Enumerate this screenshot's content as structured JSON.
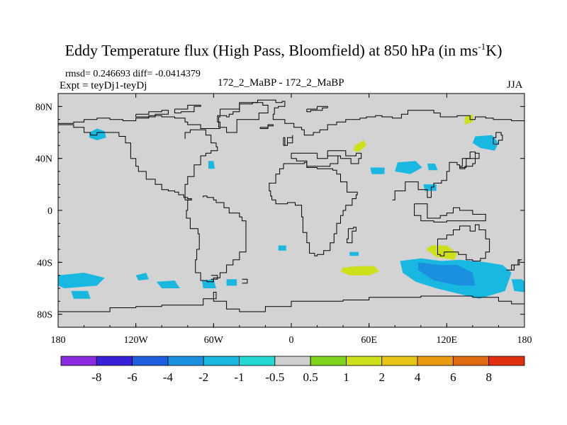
{
  "chart_data": {
    "type": "heatmap",
    "title_text": "Eddy Temperature flux (High Pass, Bloomfield) at 850 hPa (in ms",
    "title_sup": "-1",
    "title_tail": "K)",
    "stats": "rmsd= 0.246693 diff= -0.0414379",
    "experiment": "Expt = teyDj1-teyDj",
    "case_label": "172_2_MaBP - 172_2_MaBP",
    "season": "JJA",
    "xlim": [
      -180,
      180
    ],
    "ylim": [
      -90,
      90
    ],
    "x_ticks": [
      {
        "value": -180,
        "label": "180"
      },
      {
        "value": -120,
        "label": "120W"
      },
      {
        "value": -60,
        "label": "60W"
      },
      {
        "value": 0,
        "label": "0"
      },
      {
        "value": 60,
        "label": "60E"
      },
      {
        "value": 120,
        "label": "120E"
      },
      {
        "value": 180,
        "label": "180"
      }
    ],
    "y_ticks": [
      {
        "value": 80,
        "label": "80N"
      },
      {
        "value": 40,
        "label": "40N"
      },
      {
        "value": 0,
        "label": "0"
      },
      {
        "value": -40,
        "label": "40S"
      },
      {
        "value": -80,
        "label": "80S"
      }
    ],
    "colorbar": {
      "levels": [
        "-8",
        "-6",
        "-4",
        "-2",
        "-1",
        "-0.5",
        "0.5",
        "1",
        "2",
        "4",
        "6",
        "8"
      ],
      "colors": [
        "#8a2be2",
        "#3a1fd8",
        "#1e5fe0",
        "#1c90e0",
        "#19b8e0",
        "#22d8d0",
        "#cfcfcf",
        "#7ed31c",
        "#cde01a",
        "#e8c416",
        "#e89a10",
        "#e06a10",
        "#e03010"
      ]
    },
    "background_color": "#d3d3d3",
    "coastline_color": "#000000",
    "regions": [
      {
        "name": "n-pacific-cyan",
        "level": "-1",
        "lon": [
          -156,
          -150,
          -144,
          -143,
          -150,
          -156
        ],
        "lat": [
          60,
          63,
          61,
          56,
          54,
          56
        ]
      },
      {
        "name": "atlantic-cyan",
        "level": "-1",
        "lon": [
          -64,
          -60,
          -59,
          -64
        ],
        "lat": [
          38,
          38,
          32,
          32
        ]
      },
      {
        "name": "europe-green",
        "level": "1",
        "lon": [
          49,
          56,
          58,
          52,
          48
        ],
        "lat": [
          50,
          54,
          50,
          45,
          46
        ]
      },
      {
        "name": "asia-cyan-1",
        "level": "-1",
        "lon": [
          82,
          96,
          101,
          92,
          80
        ],
        "lat": [
          37,
          38,
          33,
          28,
          30
        ]
      },
      {
        "name": "asia-cyan-2",
        "level": "-1",
        "lon": [
          61,
          72,
          72,
          62
        ],
        "lat": [
          33,
          33,
          28,
          28
        ]
      },
      {
        "name": "asia-cyan-3",
        "level": "-1",
        "lon": [
          105,
          111,
          113,
          106
        ],
        "lat": [
          36,
          36,
          31,
          31
        ]
      },
      {
        "name": "asia-cyan-4",
        "level": "-1",
        "lon": [
          102,
          112,
          112,
          103
        ],
        "lat": [
          20,
          20,
          15,
          15
        ]
      },
      {
        "name": "japan-cyan",
        "level": "-1",
        "lon": [
          142,
          155,
          160,
          157,
          146,
          140
        ],
        "lat": [
          57,
          58,
          52,
          46,
          48,
          52
        ]
      },
      {
        "name": "siberia-green",
        "level": "1",
        "lon": [
          134,
          140,
          140,
          134
        ],
        "lat": [
          72,
          74,
          68,
          66
        ]
      },
      {
        "name": "s-pacific-cyan-1",
        "level": "-1",
        "lon": [
          -180,
          -160,
          -144,
          -150,
          -175,
          -180
        ],
        "lat": [
          -50,
          -48,
          -52,
          -58,
          -60,
          -58
        ]
      },
      {
        "name": "s-pacific-cyan-2",
        "level": "-1",
        "lon": [
          -170,
          -157,
          -155,
          -168
        ],
        "lat": [
          -62,
          -62,
          -68,
          -68
        ]
      },
      {
        "name": "s-pacific-cyan-3",
        "level": "-1",
        "lon": [
          -120,
          -112,
          -110,
          -118
        ],
        "lat": [
          -50,
          -48,
          -53,
          -54
        ]
      },
      {
        "name": "s-pacific-cyan-4",
        "level": "-1",
        "lon": [
          -104,
          -90,
          -86,
          -100
        ],
        "lat": [
          -55,
          -54,
          -60,
          -60
        ]
      },
      {
        "name": "s-pacific-cyan-5",
        "level": "-1",
        "lon": [
          -69,
          -60,
          -58,
          -68
        ],
        "lat": [
          -54,
          -53,
          -60,
          -60
        ]
      },
      {
        "name": "s-pacific-cyan-6",
        "level": "-1",
        "lon": [
          -50,
          -42,
          -42,
          -50
        ],
        "lat": [
          -53,
          -53,
          -58,
          -58
        ]
      },
      {
        "name": "s-atlantic-cyan",
        "level": "-1",
        "lon": [
          -10,
          -4,
          -4,
          -10
        ],
        "lat": [
          -27,
          -27,
          -31,
          -31
        ]
      },
      {
        "name": "s-ocean-green-1",
        "level": "1",
        "lon": [
          40,
          52,
          64,
          68,
          60,
          45,
          38
        ],
        "lat": [
          -44,
          -43,
          -43,
          -47,
          -50,
          -50,
          -47
        ]
      },
      {
        "name": "s-ocean-green-2",
        "level": "1",
        "lon": [
          108,
          120,
          128,
          126,
          112,
          104
        ],
        "lat": [
          -27,
          -27,
          -33,
          -38,
          -36,
          -30
        ]
      },
      {
        "name": "s-indian-cyan-big",
        "level": "-1",
        "lon": [
          84,
          100,
          116,
          130,
          150,
          163,
          170,
          165,
          145,
          128,
          112,
          96,
          86
        ],
        "lat": [
          -39,
          -37,
          -39,
          -38,
          -40,
          -42,
          -48,
          -62,
          -68,
          -64,
          -60,
          -55,
          -48
        ]
      },
      {
        "name": "s-indian-cyan-core",
        "level": "-2",
        "lon": [
          98,
          114,
          128,
          140,
          142,
          130,
          110,
          98
        ],
        "lat": [
          -40,
          -42,
          -42,
          -48,
          -58,
          -58,
          -54,
          -46
        ]
      },
      {
        "name": "s-indian-cyan-east",
        "level": "-1",
        "lon": [
          170,
          178,
          180,
          180,
          172
        ],
        "lat": [
          -53,
          -53,
          -55,
          -63,
          -62
        ]
      },
      {
        "name": "s-atlantic-cyan-2",
        "level": "-1",
        "lon": [
          45,
          52,
          52,
          45
        ],
        "lat": [
          -32,
          -32,
          -35,
          -35
        ]
      }
    ],
    "coastlines": [
      {
        "name": "eurasia",
        "lon": [
          -180,
          -168,
          -160,
          -150,
          -140,
          -130,
          -120,
          -110,
          -100,
          -90,
          -82,
          -80,
          -70,
          -60,
          -55,
          -57,
          -50,
          -48,
          -45,
          -40,
          -40,
          -30,
          -27,
          -26,
          -12,
          -7,
          -5,
          -10,
          -13,
          -14,
          -5,
          2,
          8,
          10,
          13,
          17,
          22,
          28,
          35,
          42,
          48,
          53,
          58,
          65,
          70,
          78,
          85,
          90,
          100,
          110,
          115,
          120,
          128,
          138,
          142,
          150,
          156,
          170,
          180
        ],
        "lat": [
          67,
          68,
          70,
          71,
          70,
          69,
          71,
          73,
          72,
          71,
          68,
          66,
          63,
          63,
          68,
          73,
          72,
          74,
          76,
          79,
          82,
          83,
          83,
          85,
          83,
          84,
          80,
          79,
          74,
          70,
          67,
          64,
          62,
          58,
          58,
          60,
          62,
          66,
          68,
          70,
          70,
          71,
          72,
          73,
          72,
          71,
          74,
          77,
          77,
          75,
          72,
          72,
          73,
          70,
          72,
          71,
          70,
          69,
          68
        ]
      },
      {
        "name": "n-america",
        "lon": [
          -180,
          -172,
          -168,
          -160,
          -155,
          -150,
          -140,
          -133,
          -128,
          -124,
          -124,
          -120,
          -118,
          -112,
          -105,
          -100,
          -95,
          -90,
          -87,
          -83,
          -80,
          -77,
          -82,
          -80,
          -75,
          -70,
          -66,
          -62,
          -57,
          -58,
          -62,
          -66,
          -72,
          -78,
          -82
        ],
        "lat": [
          66,
          66,
          64,
          60,
          58,
          60,
          60,
          57,
          52,
          48,
          40,
          34,
          30,
          24,
          20,
          16,
          15,
          14,
          12,
          10,
          9,
          8,
          20,
          26,
          35,
          42,
          44,
          46,
          49,
          52,
          58,
          62,
          62,
          60,
          55
        ]
      },
      {
        "name": "s-america",
        "lon": [
          -77,
          -80,
          -81,
          -78,
          -72,
          -71,
          -73,
          -74,
          -70,
          -65,
          -60,
          -55,
          -50,
          -45,
          -40,
          -35,
          -35,
          -38,
          -40,
          -48,
          -52,
          -58,
          -60,
          -65,
          -68
        ],
        "lat": [
          8,
          0,
          -6,
          -14,
          -18,
          -30,
          -38,
          -48,
          -54,
          -55,
          -52,
          -48,
          -42,
          -38,
          -32,
          -22,
          -8,
          -5,
          -2,
          2,
          6,
          8,
          10,
          11,
          10
        ]
      },
      {
        "name": "africa",
        "lon": [
          -6,
          0,
          10,
          12,
          20,
          25,
          32,
          35,
          38,
          43,
          51,
          50,
          47,
          42,
          40,
          38,
          35,
          33,
          30,
          25,
          20,
          18,
          14,
          12,
          9,
          8,
          3,
          -3,
          -8,
          -12,
          -15,
          -16,
          -17,
          -12,
          -9,
          -6
        ],
        "lat": [
          36,
          36,
          37,
          33,
          32,
          32,
          31,
          28,
          22,
          14,
          12,
          9,
          4,
          0,
          -4,
          -10,
          -18,
          -25,
          -31,
          -34,
          -35,
          -33,
          -25,
          -17,
          -5,
          4,
          6,
          5,
          5,
          8,
          11,
          15,
          21,
          28,
          32,
          36
        ]
      },
      {
        "name": "australia",
        "lon": [
          113,
          120,
          125,
          130,
          135,
          138,
          142,
          145,
          150,
          153,
          153,
          150,
          146,
          140,
          135,
          129,
          118,
          115,
          113
        ],
        "lat": [
          -22,
          -19,
          -15,
          -12,
          -12,
          -16,
          -11,
          -15,
          -22,
          -28,
          -32,
          -37,
          -39,
          -38,
          -34,
          -32,
          -35,
          -34,
          -22
        ]
      },
      {
        "name": "antarctica",
        "lon": [
          -180,
          -160,
          -140,
          -120,
          -100,
          -80,
          -68,
          -58,
          -60,
          -50,
          -40,
          -20,
          0,
          20,
          40,
          60,
          80,
          100,
          120,
          140,
          160,
          170,
          180
        ],
        "lat": [
          -78,
          -78,
          -75,
          -74,
          -73,
          -73,
          -68,
          -63,
          -70,
          -76,
          -78,
          -74,
          -70,
          -70,
          -69,
          -67,
          -67,
          -66,
          -66,
          -67,
          -70,
          -72,
          -78
        ]
      },
      {
        "name": "greenland",
        "lon": [
          -55,
          -40,
          -22,
          -18,
          -25,
          -42,
          -50,
          -56,
          -55
        ],
        "lat": [
          78,
          83,
          81,
          75,
          70,
          60,
          64,
          72,
          78
        ]
      },
      {
        "name": "mediterranean",
        "lon": [
          0,
          10,
          20,
          28,
          36,
          30,
          20,
          12,
          4,
          0
        ],
        "lat": [
          44,
          44,
          40,
          42,
          36,
          34,
          34,
          38,
          40,
          44
        ]
      },
      {
        "name": "caspian-black-sea",
        "lon": [
          28,
          40,
          42,
          50,
          54,
          52,
          46,
          38,
          30,
          28
        ],
        "lat": [
          46,
          46,
          42,
          44,
          40,
          36,
          40,
          42,
          42,
          46
        ]
      },
      {
        "name": "east-asia",
        "lon": [
          78,
          80,
          88,
          92,
          98,
          105,
          108,
          110,
          116,
          120,
          122,
          128,
          130,
          135,
          142
        ],
        "lat": [
          8,
          15,
          22,
          22,
          16,
          10,
          18,
          21,
          23,
          30,
          37,
          35,
          33,
          40,
          45
        ]
      },
      {
        "name": "se-asia-islands",
        "lon": [
          95,
          105,
          115,
          120,
          125,
          130,
          140,
          150,
          140,
          130,
          120,
          110,
          100,
          95
        ],
        "lat": [
          5,
          -6,
          -4,
          -2,
          2,
          0,
          -3,
          -8,
          -8,
          -8,
          -9,
          -8,
          -4,
          5
        ]
      },
      {
        "name": "britain",
        "lon": [
          -5,
          -3,
          1,
          1,
          -3,
          -6,
          -5
        ],
        "lat": [
          50,
          56,
          58,
          52,
          50,
          56,
          50
        ]
      },
      {
        "name": "japan",
        "lon": [
          130,
          134,
          140,
          142,
          145,
          142,
          138,
          132,
          130
        ],
        "lat": [
          32,
          34,
          36,
          40,
          44,
          45,
          40,
          34,
          32
        ]
      },
      {
        "name": "new-zealand",
        "lon": [
          166,
          170,
          175,
          178,
          176,
          172,
          166
        ],
        "lat": [
          -46,
          -42,
          -38,
          -38,
          -42,
          -46,
          -46
        ]
      },
      {
        "name": "iceland",
        "lon": [
          -24,
          -18,
          -14,
          -18,
          -24
        ],
        "lat": [
          64,
          66,
          65,
          63,
          64
        ]
      },
      {
        "name": "arctic-islands-1",
        "lon": [
          -120,
          -110,
          -100,
          -95,
          -105,
          -118,
          -120
        ],
        "lat": [
          74,
          76,
          77,
          74,
          72,
          72,
          74
        ]
      },
      {
        "name": "arctic-islands-2",
        "lon": [
          -90,
          -80,
          -70,
          -75,
          -85,
          -90
        ],
        "lat": [
          78,
          81,
          80,
          76,
          75,
          78
        ]
      },
      {
        "name": "svalbard",
        "lon": [
          12,
          20,
          28,
          24,
          15,
          12
        ],
        "lat": [
          78,
          80,
          79,
          77,
          76,
          78
        ]
      },
      {
        "name": "madagascar",
        "lon": [
          44,
          48,
          50,
          47,
          43,
          44
        ],
        "lat": [
          -14,
          -13,
          -16,
          -25,
          -22,
          -14
        ]
      },
      {
        "name": "sakhalin-kamchatka",
        "lon": [
          156,
          160,
          163,
          162,
          158,
          156
        ],
        "lat": [
          51,
          54,
          58,
          60,
          56,
          51
        ]
      },
      {
        "name": "s-georgia",
        "lon": [
          -38,
          -34,
          -34,
          -38
        ],
        "lat": [
          -53,
          -53,
          -56,
          -56
        ]
      },
      {
        "name": "falklands",
        "lon": [
          -62,
          -57,
          -57,
          -62
        ],
        "lat": [
          -50,
          -50,
          -53,
          -53
        ]
      }
    ]
  }
}
